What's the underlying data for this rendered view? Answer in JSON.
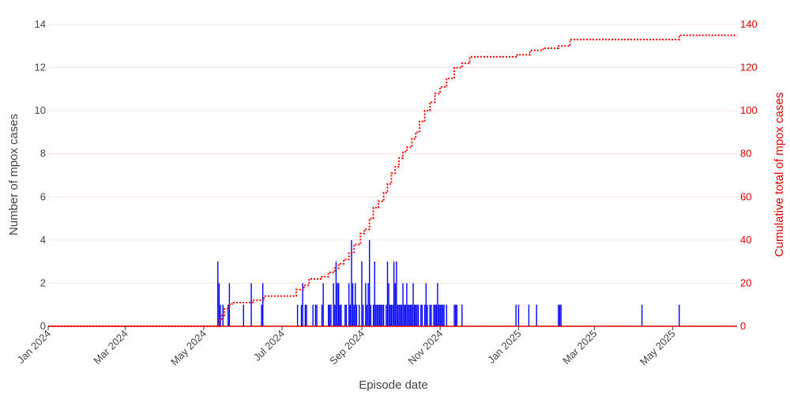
{
  "chart_data": {
    "type": "bar",
    "xlabel": "Episode date",
    "ylabel": "Number of mpox cases",
    "y2label": "Cumulative total of mpox cases",
    "xlim": [
      "2024-01-01",
      "2025-06-20"
    ],
    "ylim": [
      0,
      14
    ],
    "y2lim": [
      0,
      140
    ],
    "x_ticks": [
      {
        "date": "2024-01-01",
        "label": "Jan 2024"
      },
      {
        "date": "2024-03-01",
        "label": "Mar 2024"
      },
      {
        "date": "2024-05-01",
        "label": "May 2024"
      },
      {
        "date": "2024-07-01",
        "label": "Jul 2024"
      },
      {
        "date": "2024-09-01",
        "label": "Sep 2024"
      },
      {
        "date": "2024-11-01",
        "label": "Nov 2024"
      },
      {
        "date": "2025-01-01",
        "label": "Jan 2025"
      },
      {
        "date": "2025-03-01",
        "label": "Mar 2025"
      },
      {
        "date": "2025-05-01",
        "label": "May 2025"
      }
    ],
    "y_ticks": [
      "0",
      "2",
      "4",
      "6",
      "8",
      "10",
      "12",
      "14"
    ],
    "y2_ticks": [
      "0",
      "20",
      "40",
      "60",
      "80",
      "100",
      "120",
      "140"
    ],
    "grid": true,
    "colors": {
      "bars": "#0000ff",
      "cumulative": "#ff0000",
      "grid": "#fbe4e4",
      "y2_axis": "#e00000"
    },
    "series": [
      {
        "type": "bar",
        "axis": "left",
        "x": [
          "2024-05-12",
          "2024-05-13",
          "2024-05-14",
          "2024-05-16",
          "2024-05-20",
          "2024-05-21",
          "2024-06-01",
          "2024-06-07",
          "2024-06-15",
          "2024-06-16",
          "2024-07-13",
          "2024-07-16",
          "2024-07-17",
          "2024-07-19",
          "2024-07-20",
          "2024-07-25",
          "2024-07-27",
          "2024-07-28",
          "2024-08-01",
          "2024-08-02",
          "2024-08-06",
          "2024-08-07",
          "2024-08-08",
          "2024-08-10",
          "2024-08-11",
          "2024-08-12",
          "2024-08-13",
          "2024-08-14",
          "2024-08-15",
          "2024-08-16",
          "2024-08-19",
          "2024-08-20",
          "2024-08-22",
          "2024-08-23",
          "2024-08-24",
          "2024-08-25",
          "2024-08-26",
          "2024-08-27",
          "2024-08-28",
          "2024-08-30",
          "2024-09-01",
          "2024-09-02",
          "2024-09-04",
          "2024-09-05",
          "2024-09-06",
          "2024-09-07",
          "2024-09-08",
          "2024-09-10",
          "2024-09-11",
          "2024-09-12",
          "2024-09-13",
          "2024-09-14",
          "2024-09-15",
          "2024-09-16",
          "2024-09-17",
          "2024-09-18",
          "2024-09-20",
          "2024-09-21",
          "2024-09-22",
          "2024-09-23",
          "2024-09-24",
          "2024-09-25",
          "2024-09-26",
          "2024-09-27",
          "2024-09-28",
          "2024-09-29",
          "2024-09-30",
          "2024-10-01",
          "2024-10-02",
          "2024-10-03",
          "2024-10-04",
          "2024-10-05",
          "2024-10-06",
          "2024-10-07",
          "2024-10-08",
          "2024-10-09",
          "2024-10-10",
          "2024-10-11",
          "2024-10-12",
          "2024-10-13",
          "2024-10-14",
          "2024-10-15",
          "2024-10-17",
          "2024-10-18",
          "2024-10-20",
          "2024-10-21",
          "2024-10-22",
          "2024-10-24",
          "2024-10-25",
          "2024-10-27",
          "2024-10-28",
          "2024-10-29",
          "2024-10-30",
          "2024-10-31",
          "2024-11-01",
          "2024-11-02",
          "2024-11-03",
          "2024-11-04",
          "2024-11-06",
          "2024-11-12",
          "2024-11-13",
          "2024-11-14",
          "2024-11-18",
          "2024-12-30",
          "2025-01-01",
          "2025-01-09",
          "2025-01-15",
          "2025-02-01",
          "2025-02-02",
          "2025-02-03",
          "2025-04-07",
          "2025-05-06"
        ],
        "values": [
          3,
          2,
          1,
          1,
          1,
          2,
          1,
          2,
          1,
          2,
          1,
          1,
          2,
          1,
          1,
          1,
          1,
          1,
          1,
          2,
          1,
          1,
          1,
          2,
          1,
          3,
          2,
          2,
          1,
          1,
          1,
          1,
          2,
          1,
          4,
          2,
          1,
          2,
          1,
          1,
          3,
          1,
          2,
          1,
          2,
          4,
          1,
          1,
          3,
          1,
          1,
          1,
          1,
          1,
          1,
          1,
          1,
          3,
          2,
          1,
          1,
          1,
          3,
          2,
          3,
          1,
          1,
          1,
          1,
          2,
          1,
          1,
          2,
          1,
          1,
          1,
          1,
          2,
          1,
          1,
          1,
          1,
          1,
          1,
          1,
          2,
          1,
          1,
          1,
          1,
          1,
          1,
          2,
          1,
          1,
          1,
          1,
          1,
          1,
          1,
          1,
          1,
          1,
          1,
          1,
          1,
          1,
          1,
          1,
          1,
          1,
          1
        ],
        "color": "#0000ff"
      },
      {
        "type": "line",
        "axis": "right",
        "style": "dotted-step",
        "x": [
          "2024-01-01",
          "2024-05-11",
          "2024-05-13",
          "2024-05-15",
          "2024-05-17",
          "2024-05-21",
          "2024-05-23",
          "2024-06-01",
          "2024-06-08",
          "2024-06-17",
          "2024-07-12",
          "2024-07-18",
          "2024-07-22",
          "2024-08-01",
          "2024-08-06",
          "2024-08-11",
          "2024-08-14",
          "2024-08-18",
          "2024-08-22",
          "2024-08-26",
          "2024-08-31",
          "2024-09-03",
          "2024-09-07",
          "2024-09-10",
          "2024-09-14",
          "2024-09-18",
          "2024-09-21",
          "2024-09-24",
          "2024-09-27",
          "2024-09-30",
          "2024-10-03",
          "2024-10-06",
          "2024-10-10",
          "2024-10-13",
          "2024-10-16",
          "2024-10-20",
          "2024-10-24",
          "2024-10-28",
          "2024-11-01",
          "2024-11-06",
          "2024-11-12",
          "2024-11-18",
          "2024-11-24",
          "2024-12-31",
          "2025-01-10",
          "2025-01-20",
          "2025-02-01",
          "2025-02-04",
          "2025-02-10",
          "2025-04-07",
          "2025-05-06",
          "2025-06-20"
        ],
        "values": [
          0,
          0,
          3,
          5,
          8,
          10,
          11,
          11,
          12,
          14,
          17,
          19,
          22,
          23,
          25,
          27,
          29,
          31,
          34,
          38,
          43,
          45,
          50,
          55,
          58,
          62,
          66,
          71,
          74,
          78,
          81,
          83,
          87,
          90,
          95,
          100,
          104,
          108,
          111,
          115,
          120,
          122,
          125,
          126,
          128,
          129,
          130,
          130,
          133,
          133,
          135,
          135
        ],
        "color": "#ff0000"
      }
    ]
  }
}
